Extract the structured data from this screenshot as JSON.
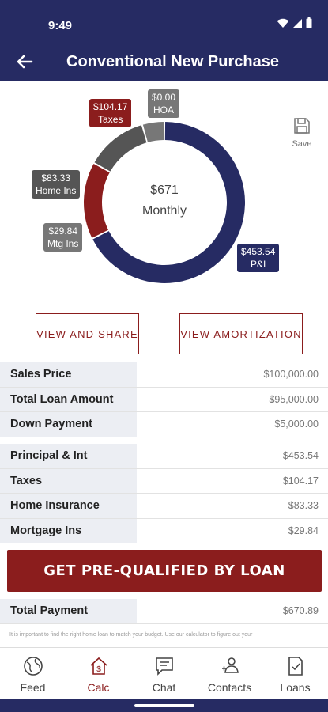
{
  "status_bar": {
    "time": "9:49"
  },
  "header": {
    "title": "Conventional New Purchase"
  },
  "chart_data": {
    "type": "pie",
    "style": "donut",
    "center_value": "$671",
    "center_label": "Monthly",
    "total": 670.89,
    "slices": [
      {
        "name": "P&I",
        "label_value": "$453.54",
        "value": 453.54,
        "color": "#262b63"
      },
      {
        "name": "HOA",
        "label_value": "$0.00",
        "value": 0.0,
        "color": "#777777"
      },
      {
        "name": "Taxes",
        "label_value": "$104.17",
        "value": 104.17,
        "color": "#8b1d1d"
      },
      {
        "name": "Home Ins",
        "label_value": "$83.33",
        "value": 83.33,
        "color": "#555555"
      },
      {
        "name": "Mtg Ins",
        "label_value": "$29.84",
        "value": 29.84,
        "color": "#777777"
      }
    ]
  },
  "save": {
    "label": "Save"
  },
  "actions": {
    "view_share": "VIEW AND SHARE",
    "view_amortization": "VIEW AMORTIZATION"
  },
  "loan_summary": [
    {
      "label": "Sales Price",
      "value": "$100,000.00"
    },
    {
      "label": "Total Loan Amount",
      "value": "$95,000.00"
    },
    {
      "label": "Down Payment",
      "value": "$5,000.00"
    }
  ],
  "payment_breakdown": [
    {
      "label": "Principal & Int",
      "value": "$453.54"
    },
    {
      "label": "Taxes",
      "value": "$104.17"
    },
    {
      "label": "Home Insurance",
      "value": "$83.33"
    },
    {
      "label": "Mortgage Ins",
      "value": "$29.84"
    }
  ],
  "cta": {
    "label": "GET PRE-QUALIFIED BY LOAN"
  },
  "total": {
    "label": "Total Payment",
    "value": "$670.89"
  },
  "disclaimer": "It is important to find the right home loan to match your budget. Use our calculator to figure out your",
  "tabs": [
    {
      "label": "Feed",
      "icon": "globe-icon",
      "active": false
    },
    {
      "label": "Calc",
      "icon": "house-dollar-icon",
      "active": true
    },
    {
      "label": "Chat",
      "icon": "chat-icon",
      "active": false
    },
    {
      "label": "Contacts",
      "icon": "contacts-icon",
      "active": false
    },
    {
      "label": "Loans",
      "icon": "document-check-icon",
      "active": false
    }
  ],
  "colors": {
    "primary": "#262b63",
    "accent": "#8b1d1d"
  }
}
